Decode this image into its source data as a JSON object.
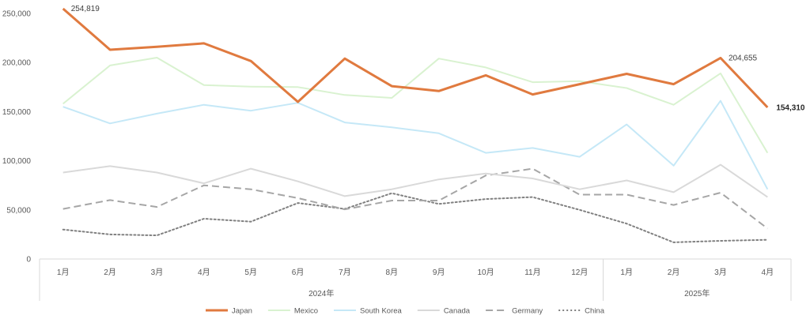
{
  "chart_data": {
    "type": "line",
    "title": "",
    "xlabel": "",
    "ylabel": "",
    "ylim": [
      0,
      250000
    ],
    "yticks": [
      "0",
      "50,000",
      "100,000",
      "150,000",
      "200,000",
      "250,000"
    ],
    "categories": [
      "1月",
      "2月",
      "3月",
      "4月",
      "5月",
      "6月",
      "7月",
      "8月",
      "9月",
      "10月",
      "11月",
      "12月",
      "1月",
      "2月",
      "3月",
      "4月"
    ],
    "groups": [
      {
        "label": "2024年",
        "count": 12
      },
      {
        "label": "2025年",
        "count": 4
      }
    ],
    "grid": false,
    "legend_position": "bottom",
    "series": [
      {
        "name": "Japan",
        "color": "#E07A3F",
        "style": "solid",
        "width": 3,
        "values": [
          254819,
          213000,
          216000,
          219500,
          201500,
          160000,
          204000,
          176000,
          171000,
          187000,
          167500,
          178000,
          188500,
          178000,
          204655,
          154310
        ]
      },
      {
        "name": "Mexico",
        "color": "#D9F2D0",
        "style": "solid",
        "width": 2,
        "values": [
          158000,
          197000,
          205000,
          177000,
          175500,
          175000,
          167000,
          164000,
          204000,
          195000,
          180000,
          181000,
          174000,
          157000,
          189000,
          108000
        ]
      },
      {
        "name": "South Korea",
        "color": "#C5E8F7",
        "style": "solid",
        "width": 2,
        "values": [
          155000,
          138000,
          148000,
          157000,
          151000,
          159000,
          139000,
          134000,
          128000,
          108000,
          113000,
          104000,
          137000,
          95000,
          161000,
          71000
        ]
      },
      {
        "name": "Canada",
        "color": "#D9D9D9",
        "style": "solid",
        "width": 2,
        "values": [
          88000,
          94500,
          88000,
          77000,
          92000,
          79000,
          64000,
          71000,
          81000,
          87000,
          82000,
          71000,
          80000,
          68000,
          96000,
          63000
        ]
      },
      {
        "name": "Germany",
        "color": "#A6A6A6",
        "style": "dash",
        "width": 2,
        "values": [
          51000,
          60000,
          53000,
          75000,
          71000,
          62000,
          50500,
          59500,
          59500,
          85000,
          92000,
          65500,
          65500,
          55000,
          67500,
          31000
        ]
      },
      {
        "name": "China",
        "color": "#808080",
        "style": "dot",
        "width": 2,
        "values": [
          30000,
          25000,
          24000,
          41000,
          38000,
          57000,
          51000,
          67000,
          56000,
          61000,
          63000,
          50000,
          36000,
          17000,
          18500,
          19500
        ]
      }
    ],
    "data_labels": [
      {
        "series": "Japan",
        "index": 0,
        "text": "254,819",
        "bold": false
      },
      {
        "series": "Japan",
        "index": 14,
        "text": "204,655",
        "bold": false
      },
      {
        "series": "Japan",
        "index": 15,
        "text": "154,310",
        "bold": true
      }
    ]
  }
}
